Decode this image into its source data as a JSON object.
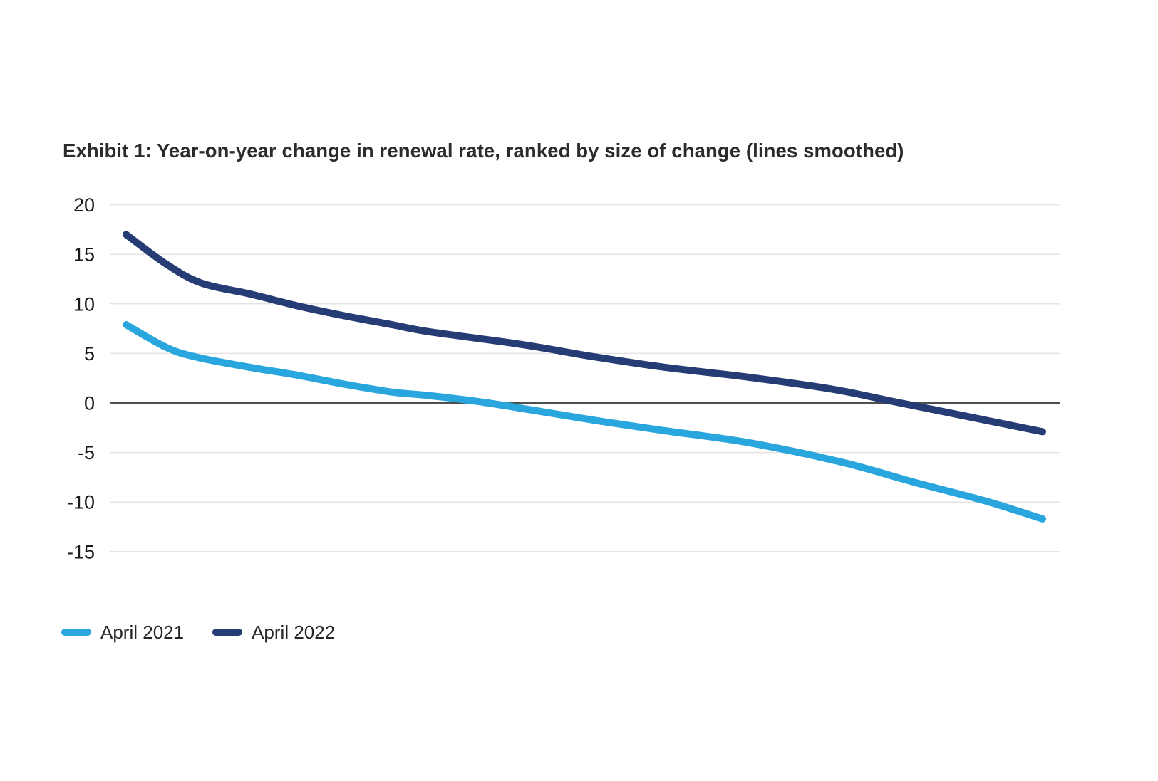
{
  "page": {
    "background": "#ffffff"
  },
  "header": {
    "title": "Exhibit 1: Year-on-year change in renewal rate, ranked by size of change (lines smoothed)"
  },
  "legend": {
    "items": [
      {
        "label": "April 2021",
        "color": "#2aa6de"
      },
      {
        "label": "April 2022",
        "color": "#253c74"
      }
    ]
  },
  "chart_data": {
    "type": "line",
    "title": "Exhibit 1: Year-on-year change in renewal rate, ranked by size of change (lines smoothed)",
    "xlabel": "",
    "ylabel": "",
    "x_axis": {
      "range_percent": [
        0,
        100
      ],
      "tick_labels": [],
      "note": "ranked by size of change, no visible x tick labels"
    },
    "y_axis": {
      "ticks": [
        20,
        15,
        10,
        5,
        0,
        -5,
        -10,
        -15
      ],
      "range": [
        -17.5,
        21
      ]
    },
    "grid": true,
    "zero_line": true,
    "legend_position": "bottom-left",
    "colors": {
      "grid": "#e4e4e4",
      "zero_line": "#4f4f4f",
      "tick_label": "#1a1a1a"
    },
    "series": [
      {
        "name": "April 2021",
        "color": "#2aa6de",
        "points_x_percent_y_value": [
          [
            0,
            7.9
          ],
          [
            4.4,
            5.6
          ],
          [
            7.8,
            4.6
          ],
          [
            13.5,
            3.6
          ],
          [
            18.7,
            2.8
          ],
          [
            23.8,
            1.9
          ],
          [
            29,
            1.1
          ],
          [
            33,
            0.75
          ],
          [
            39.5,
            0
          ],
          [
            50.8,
            -1.7
          ],
          [
            58.8,
            -2.8
          ],
          [
            67.9,
            -4.0
          ],
          [
            78.2,
            -6.0
          ],
          [
            86,
            -8.0
          ],
          [
            93.8,
            -9.9
          ],
          [
            100,
            -11.7
          ]
        ]
      },
      {
        "name": "April 2022",
        "color": "#253c74",
        "points_x_percent_y_value": [
          [
            0,
            17.0
          ],
          [
            4.4,
            14.0
          ],
          [
            8.2,
            12.1
          ],
          [
            13.5,
            11.0
          ],
          [
            18.7,
            9.8
          ],
          [
            23.8,
            8.8
          ],
          [
            29,
            7.9
          ],
          [
            33,
            7.2
          ],
          [
            43.2,
            5.9
          ],
          [
            50.8,
            4.7
          ],
          [
            58.8,
            3.6
          ],
          [
            67.9,
            2.6
          ],
          [
            77,
            1.4
          ],
          [
            84.5,
            0
          ],
          [
            100,
            -2.9
          ]
        ]
      }
    ]
  }
}
